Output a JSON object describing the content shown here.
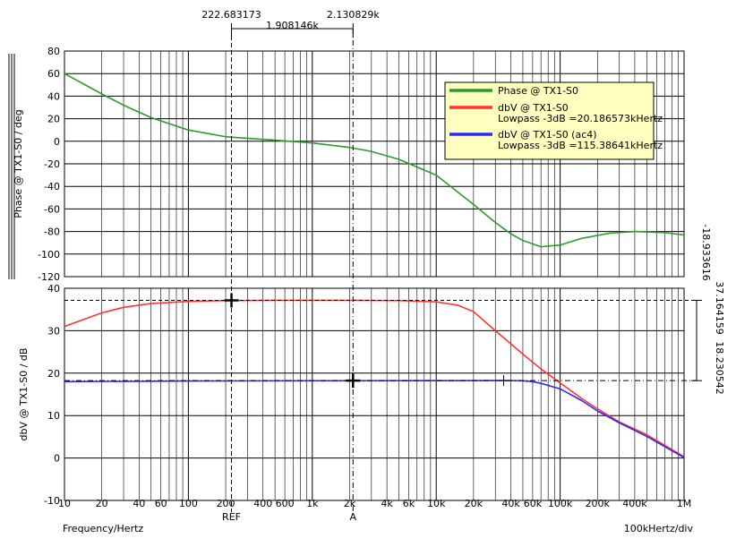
{
  "chart_data": [
    {
      "type": "line",
      "panel": "phase",
      "ylabel": "Phase @ TX1-S0 / deg",
      "ylim": [
        -120,
        80
      ],
      "yticks": [
        80,
        60,
        40,
        20,
        0,
        -20,
        -40,
        -60,
        -80,
        -100,
        -120
      ],
      "xscale": "log",
      "xlim": [
        10,
        1000000
      ],
      "grid": true,
      "legend_placement": "top-right",
      "series": [
        {
          "name": "Phase @ TX1-S0",
          "color": "#2e9a2e",
          "x": [
            10,
            20,
            30,
            50,
            100,
            200,
            500,
            1000,
            2000,
            3000,
            5000,
            10000,
            20000,
            30000,
            40000,
            50000,
            70000,
            100000,
            150000,
            250000,
            400000,
            700000,
            1000000
          ],
          "y": [
            60,
            42,
            32,
            21,
            10,
            4,
            1,
            -1.5,
            -5.5,
            -9,
            -16,
            -30,
            -56,
            -72,
            -82,
            -88,
            -93.5,
            -92,
            -86,
            -81.5,
            -80,
            -81,
            -83
          ]
        }
      ],
      "side_value": "-18.933616"
    },
    {
      "type": "line",
      "panel": "magnitude",
      "ylabel": "dbV @ TX1-S0 / dB",
      "ylim": [
        -10,
        40
      ],
      "yticks": [
        40,
        30,
        20,
        10,
        0,
        -10
      ],
      "xlabel": "Frequency/Hertz",
      "xscale": "log",
      "xlim": [
        10,
        1000000
      ],
      "grid": true,
      "series": [
        {
          "name": "dbV @ TX1-S0",
          "legend_note": "Lowpass -3dB =20.186573kHertz",
          "color": "#ff3333",
          "x": [
            10,
            20,
            30,
            50,
            100,
            200,
            500,
            1000,
            2000,
            5000,
            10000,
            15000,
            20000,
            30000,
            50000,
            70000,
            100000,
            150000,
            200000,
            300000,
            500000,
            1000000
          ],
          "y": [
            31,
            34.2,
            35.5,
            36.4,
            36.9,
            37.1,
            37.16,
            37.16,
            37.16,
            37.1,
            36.8,
            36,
            34.5,
            30,
            24.5,
            21,
            17.7,
            14,
            11.6,
            8.5,
            5.5,
            0.3
          ]
        },
        {
          "name": "dbV @ TX1-S0 (ac4)",
          "legend_note": "Lowpass -3dB =115.38641kHertz",
          "color": "#2a2aff",
          "x": [
            10,
            50,
            100,
            1000,
            10000,
            30000,
            50000,
            60000,
            70000,
            100000,
            150000,
            200000,
            300000,
            500000,
            1000000
          ],
          "y": [
            18.0,
            18.1,
            18.15,
            18.2,
            18.23,
            18.25,
            18.2,
            18.0,
            17.6,
            16.3,
            13.5,
            11.1,
            8.3,
            5.1,
            0.1
          ]
        }
      ],
      "side_values": [
        "37.164159",
        "18.230542"
      ]
    }
  ],
  "x_tick_labels": [
    {
      "v": 10,
      "t": "10"
    },
    {
      "v": 20,
      "t": "20"
    },
    {
      "v": 40,
      "t": "40"
    },
    {
      "v": 60,
      "t": "60"
    },
    {
      "v": 100,
      "t": "100"
    },
    {
      "v": 200,
      "t": "200"
    },
    {
      "v": 400,
      "t": "400"
    },
    {
      "v": 600,
      "t": "600"
    },
    {
      "v": 1000,
      "t": "1k"
    },
    {
      "v": 2000,
      "t": "2k"
    },
    {
      "v": 4000,
      "t": "4k"
    },
    {
      "v": 6000,
      "t": "6k"
    },
    {
      "v": 10000,
      "t": "10k"
    },
    {
      "v": 20000,
      "t": "20k"
    },
    {
      "v": 40000,
      "t": "40k"
    },
    {
      "v": 60000,
      "t": "60k"
    },
    {
      "v": 100000,
      "t": "100k"
    },
    {
      "v": 200000,
      "t": "200k"
    },
    {
      "v": 400000,
      "t": "400k"
    },
    {
      "v": 1000000,
      "t": "1M"
    }
  ],
  "cursors": {
    "ref": {
      "label": "REF",
      "x": 222.683173,
      "x_text": "222.683173",
      "y_mag": 37.164159
    },
    "a": {
      "label": "A",
      "x": 2130.829,
      "x_text": "2.130829k",
      "y_mag": 18.230542
    },
    "delta_text": "1.908146k"
  },
  "marker_extra": {
    "x": 35000,
    "y": 18.25
  },
  "footer": {
    "xlabel": "Frequency/Hertz",
    "scale_text": "100kHertz/div"
  },
  "colors": {
    "legend_bg": "#ffffc0",
    "phase_line": "#2e9a2e",
    "mag1_line": "#ff3333",
    "mag2_line": "#2a2aff"
  }
}
